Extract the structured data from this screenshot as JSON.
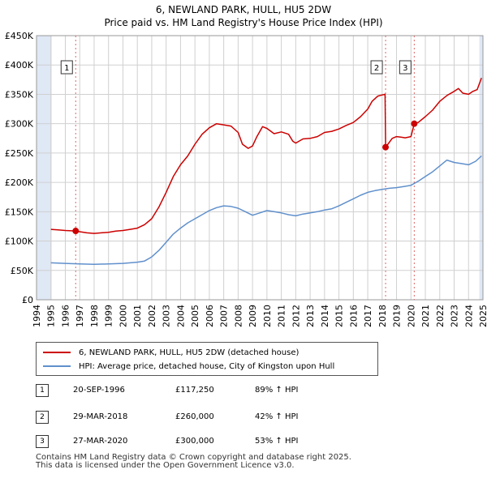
{
  "title": {
    "line1": "6, NEWLAND PARK, HULL, HU5 2DW",
    "line2": "Price paid vs. HM Land Registry's House Price Index (HPI)"
  },
  "colors": {
    "property": "#cc0000",
    "hpi": "#6090cc",
    "shade": "#dfe8f5",
    "grid": "#d0d0d0",
    "marker_line": "#dd6666"
  },
  "chart_data": {
    "type": "line",
    "title": "6, NEWLAND PARK, HULL, HU5 2DW — Price paid vs. HM Land Registry's House Price Index (HPI)",
    "xlabel": "",
    "ylabel": "",
    "xlim": [
      1994,
      2025
    ],
    "ylim": [
      0,
      450000
    ],
    "y_ticks": [
      0,
      50000,
      100000,
      150000,
      200000,
      250000,
      300000,
      350000,
      400000,
      450000
    ],
    "y_tick_labels": [
      "£0",
      "£50K",
      "£100K",
      "£150K",
      "£200K",
      "£250K",
      "£300K",
      "£350K",
      "£400K",
      "£450K"
    ],
    "x_ticks": [
      1994,
      1995,
      1996,
      1997,
      1998,
      1999,
      2000,
      2001,
      2002,
      2003,
      2004,
      2005,
      2006,
      2007,
      2008,
      2009,
      2010,
      2011,
      2012,
      2013,
      2014,
      2015,
      2016,
      2017,
      2018,
      2019,
      2020,
      2021,
      2022,
      2023,
      2024,
      2025
    ],
    "x_tick_labels": [
      "1994",
      "1995",
      "1996",
      "1997",
      "1998",
      "1999",
      "2000",
      "2001",
      "2002",
      "2003",
      "2004",
      "2005",
      "2006",
      "2007",
      "2008",
      "2009",
      "2010",
      "2011",
      "2012",
      "2013",
      "2014",
      "2015",
      "2016",
      "2017",
      "2018",
      "2019",
      "2020",
      "2021",
      "2022",
      "2023",
      "2024",
      "2025"
    ],
    "grid": true,
    "shaded_ranges": [
      [
        1994.0,
        1995.05
      ],
      [
        2024.75,
        2025.0
      ]
    ],
    "series": [
      {
        "name": "6, NEWLAND PARK, HULL, HU5 2DW (detached house)",
        "x": [
          1995.0,
          1995.5,
          1996.0,
          1996.72,
          1997.0,
          1997.5,
          1998.0,
          1998.5,
          1999.0,
          1999.5,
          2000.0,
          2000.5,
          2001.0,
          2001.5,
          2002.0,
          2002.5,
          2003.0,
          2003.5,
          2004.0,
          2004.5,
          2005.0,
          2005.5,
          2006.0,
          2006.5,
          2007.0,
          2007.5,
          2008.0,
          2008.3,
          2008.7,
          2009.0,
          2009.3,
          2009.7,
          2010.0,
          2010.5,
          2011.0,
          2011.5,
          2011.8,
          2012.0,
          2012.5,
          2013.0,
          2013.5,
          2014.0,
          2014.5,
          2015.0,
          2015.5,
          2016.0,
          2016.5,
          2017.0,
          2017.3,
          2017.7,
          2018.0,
          2018.2,
          2018.24,
          2018.4,
          2018.7,
          2019.0,
          2019.3,
          2019.6,
          2020.0,
          2020.23,
          2020.5,
          2021.0,
          2021.5,
          2022.0,
          2022.5,
          2023.0,
          2023.3,
          2023.6,
          2024.0,
          2024.3,
          2024.6,
          2024.9
        ],
        "values": [
          120000,
          119000,
          118000,
          117250,
          116000,
          114000,
          113000,
          114000,
          115000,
          117000,
          118000,
          120000,
          122000,
          128000,
          138000,
          158000,
          183000,
          210000,
          230000,
          245000,
          265000,
          282000,
          293000,
          300000,
          298000,
          296000,
          285000,
          265000,
          258000,
          262000,
          278000,
          295000,
          292000,
          283000,
          286000,
          282000,
          270000,
          267000,
          274000,
          275000,
          278000,
          285000,
          287000,
          291000,
          297000,
          302000,
          312000,
          325000,
          338000,
          347000,
          349000,
          350000,
          260000,
          265000,
          275000,
          278000,
          277000,
          276000,
          278000,
          300000,
          302000,
          312000,
          323000,
          338000,
          348000,
          355000,
          360000,
          352000,
          350000,
          355000,
          358000,
          378000
        ]
      },
      {
        "name": "HPI: Average price, detached house, City of Kingston upon Hull",
        "x": [
          1995.0,
          1996.0,
          1997.0,
          1998.0,
          1999.0,
          2000.0,
          2001.0,
          2001.5,
          2002.0,
          2002.5,
          2003.0,
          2003.5,
          2004.0,
          2004.5,
          2005.0,
          2005.5,
          2006.0,
          2006.5,
          2007.0,
          2007.5,
          2008.0,
          2008.5,
          2009.0,
          2009.5,
          2010.0,
          2010.5,
          2011.0,
          2011.5,
          2012.0,
          2012.5,
          2013.0,
          2013.5,
          2014.0,
          2014.5,
          2015.0,
          2015.5,
          2016.0,
          2016.5,
          2017.0,
          2017.5,
          2018.0,
          2018.5,
          2019.0,
          2019.5,
          2020.0,
          2020.5,
          2021.0,
          2021.5,
          2022.0,
          2022.5,
          2023.0,
          2023.5,
          2024.0,
          2024.5,
          2024.9
        ],
        "values": [
          63000,
          62000,
          61000,
          60500,
          61000,
          62000,
          64000,
          66000,
          73000,
          84000,
          98000,
          112000,
          122000,
          131000,
          138000,
          145000,
          152000,
          157000,
          160000,
          159000,
          156000,
          150000,
          144000,
          148000,
          152000,
          150000,
          148000,
          145000,
          143000,
          146000,
          148000,
          150000,
          153000,
          155000,
          160000,
          166000,
          172000,
          178000,
          183000,
          186000,
          188000,
          190000,
          191000,
          193000,
          195000,
          202000,
          210000,
          218000,
          228000,
          238000,
          234000,
          232000,
          230000,
          236000,
          245000
        ]
      }
    ],
    "sales": [
      {
        "label": "1",
        "x": 1996.72,
        "value": 117250,
        "date": "20-SEP-1996",
        "price": "£117,250",
        "hpi_change": "89% ↑ HPI"
      },
      {
        "label": "2",
        "x": 2018.24,
        "value": 260000,
        "date": "29-MAR-2018",
        "price": "£260,000",
        "hpi_change": "42% ↑ HPI"
      },
      {
        "label": "3",
        "x": 2020.23,
        "value": 300000,
        "date": "27-MAR-2020",
        "price": "£300,000",
        "hpi_change": "53% ↑ HPI"
      }
    ],
    "legend": [
      "6, NEWLAND PARK, HULL, HU5 2DW (detached house)",
      "HPI: Average price, detached house, City of Kingston upon Hull"
    ],
    "legend_position": "below"
  },
  "legend": {
    "property": "6, NEWLAND PARK, HULL, HU5 2DW (detached house)",
    "hpi": "HPI: Average price, detached house, City of Kingston upon Hull"
  },
  "sales_table": [
    {
      "label": "1",
      "date": "20-SEP-1996",
      "price": "£117,250",
      "hpi": "89% ↑ HPI"
    },
    {
      "label": "2",
      "date": "29-MAR-2018",
      "price": "£260,000",
      "hpi": "42% ↑ HPI"
    },
    {
      "label": "3",
      "date": "27-MAR-2020",
      "price": "£300,000",
      "hpi": "53% ↑ HPI"
    }
  ],
  "footer": {
    "line1": "Contains HM Land Registry data © Crown copyright and database right 2025.",
    "line2": "This data is licensed under the Open Government Licence v3.0."
  }
}
